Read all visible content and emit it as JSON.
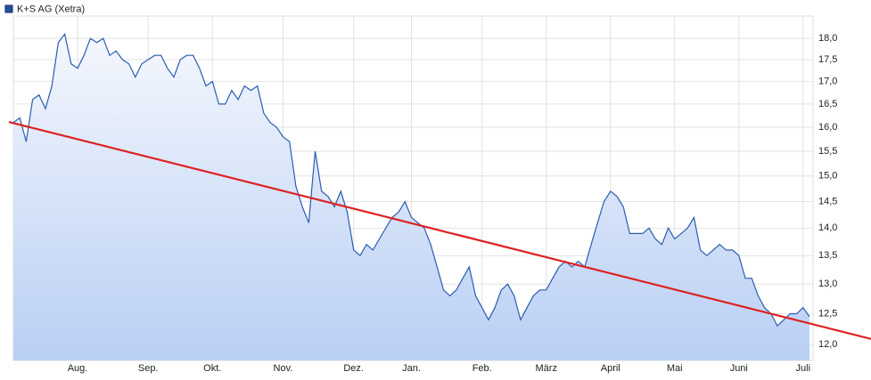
{
  "chart_data": {
    "type": "area-line",
    "categories": [
      null,
      null,
      null,
      null,
      null,
      null,
      null,
      null,
      null,
      null,
      "Aug.",
      null,
      null,
      null,
      null,
      null,
      null,
      null,
      null,
      null,
      null,
      "Sep.",
      null,
      null,
      null,
      null,
      null,
      null,
      null,
      null,
      null,
      "Okt.",
      null,
      null,
      null,
      null,
      null,
      null,
      null,
      null,
      null,
      null,
      "Nov.",
      null,
      null,
      null,
      null,
      null,
      null,
      null,
      null,
      null,
      null,
      "Dez.",
      null,
      null,
      null,
      null,
      null,
      null,
      null,
      null,
      "Jan.",
      null,
      null,
      null,
      null,
      null,
      null,
      null,
      null,
      null,
      null,
      "Feb.",
      null,
      null,
      null,
      null,
      null,
      null,
      null,
      null,
      null,
      "März",
      null,
      null,
      null,
      null,
      null,
      null,
      null,
      null,
      null,
      "April",
      null,
      null,
      null,
      null,
      null,
      null,
      null,
      null,
      null,
      "Mai",
      null,
      null,
      null,
      null,
      null,
      null,
      null,
      null,
      null,
      "Juni",
      null,
      null,
      null,
      null,
      null,
      null,
      null,
      null,
      null,
      "Juli",
      null
    ],
    "series": [
      {
        "name": "K+S AG (Xetra)",
        "color": "#2a5db0",
        "values": [
          16.1,
          16.2,
          15.7,
          16.6,
          16.7,
          16.4,
          16.9,
          17.9,
          18.1,
          17.4,
          17.3,
          17.6,
          18.0,
          17.9,
          18.0,
          17.6,
          17.7,
          17.5,
          17.4,
          17.1,
          17.4,
          17.5,
          17.6,
          17.6,
          17.3,
          17.1,
          17.5,
          17.6,
          17.6,
          17.3,
          16.9,
          17.0,
          16.5,
          16.5,
          16.8,
          16.6,
          16.9,
          16.8,
          16.9,
          16.3,
          16.1,
          16.0,
          15.8,
          15.7,
          14.8,
          14.4,
          14.1,
          15.5,
          14.7,
          14.6,
          14.4,
          14.7,
          14.3,
          13.6,
          13.5,
          13.7,
          13.6,
          13.8,
          14.0,
          14.2,
          14.3,
          14.5,
          14.2,
          14.1,
          14.0,
          13.7,
          13.3,
          12.9,
          12.8,
          12.9,
          13.1,
          13.3,
          12.8,
          12.6,
          12.4,
          12.6,
          12.9,
          13.0,
          12.8,
          12.4,
          12.6,
          12.8,
          12.9,
          12.9,
          13.1,
          13.3,
          13.4,
          13.3,
          13.4,
          13.3,
          13.7,
          14.1,
          14.5,
          14.7,
          14.6,
          14.4,
          13.9,
          13.9,
          13.9,
          14.0,
          13.8,
          13.7,
          14.0,
          13.8,
          13.9,
          14.0,
          14.2,
          13.6,
          13.5,
          13.6,
          13.7,
          13.6,
          13.6,
          13.5,
          13.1,
          13.1,
          12.8,
          12.6,
          12.5,
          12.3,
          12.4,
          12.5,
          12.5,
          12.6,
          12.45
        ]
      }
    ],
    "trendline": {
      "color": "#dd2222",
      "start": 16.09,
      "end": 12.34
    },
    "ylim": [
      11.75,
      18.54
    ],
    "log_scale": true,
    "grid": true,
    "yticks": [
      {
        "value": 12,
        "label": "12,0"
      },
      {
        "value": 12.5,
        "label": "12,5"
      },
      {
        "value": 13,
        "label": "13,0"
      },
      {
        "value": 13.5,
        "label": "13,5"
      },
      {
        "value": 14,
        "label": "14,0"
      },
      {
        "value": 14.5,
        "label": "14,5"
      },
      {
        "value": 15,
        "label": "15,0"
      },
      {
        "value": 15.5,
        "label": "15,5"
      },
      {
        "value": 16,
        "label": "16,0"
      },
      {
        "value": 16.5,
        "label": "16,5"
      },
      {
        "value": 17,
        "label": "17,0"
      },
      {
        "value": 17.5,
        "label": "17,5"
      },
      {
        "value": 18,
        "label": "18,0"
      }
    ]
  }
}
